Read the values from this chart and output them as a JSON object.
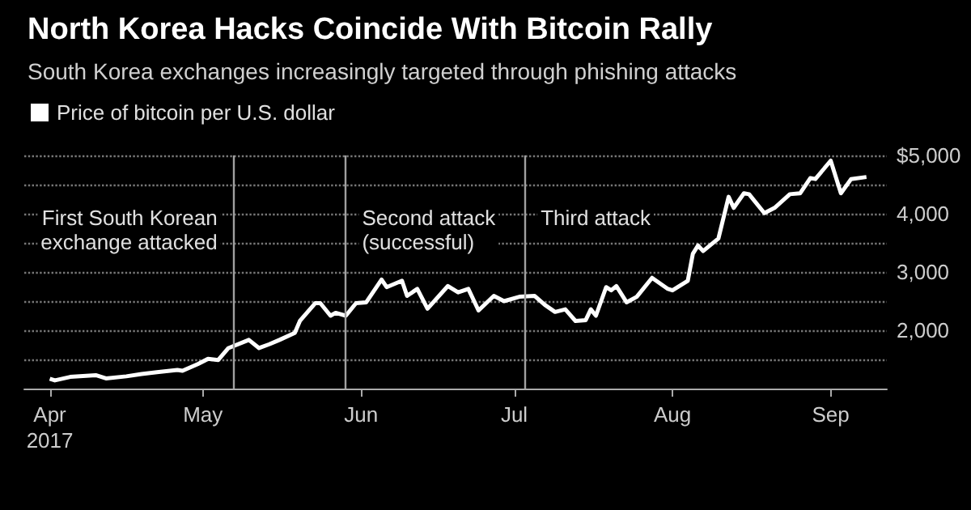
{
  "chart_data": {
    "type": "line",
    "title": "North Korea Hacks Coincide With Bitcoin Rally",
    "subtitle": "South Korea exchanges increasingly targeted through phishing attacks",
    "x": [
      "2017-04-01",
      "2017-04-02",
      "2017-04-05",
      "2017-04-10",
      "2017-04-12",
      "2017-04-16",
      "2017-04-19",
      "2017-04-22",
      "2017-04-26",
      "2017-04-27",
      "2017-04-30",
      "2017-05-02",
      "2017-05-04",
      "2017-05-06",
      "2017-05-10",
      "2017-05-12",
      "2017-05-14",
      "2017-05-16",
      "2017-05-19",
      "2017-05-20",
      "2017-05-23",
      "2017-05-24",
      "2017-05-26",
      "2017-05-27",
      "2017-05-29",
      "2017-05-31",
      "2017-06-02",
      "2017-06-05",
      "2017-06-06",
      "2017-06-09",
      "2017-06-10",
      "2017-06-12",
      "2017-06-14",
      "2017-06-18",
      "2017-06-20",
      "2017-06-22",
      "2017-06-24",
      "2017-06-27",
      "2017-06-29",
      "2017-07-02",
      "2017-07-05",
      "2017-07-07",
      "2017-07-09",
      "2017-07-11",
      "2017-07-13",
      "2017-07-15",
      "2017-07-16",
      "2017-07-17",
      "2017-07-19",
      "2017-07-20",
      "2017-07-21",
      "2017-07-23",
      "2017-07-25",
      "2017-07-28",
      "2017-07-31",
      "2017-08-01",
      "2017-08-04",
      "2017-08-05",
      "2017-08-06",
      "2017-08-07",
      "2017-08-10",
      "2017-08-12",
      "2017-08-13",
      "2017-08-15",
      "2017-08-16",
      "2017-08-19",
      "2017-08-21",
      "2017-08-24",
      "2017-08-26",
      "2017-08-28",
      "2017-08-29",
      "2017-09-01",
      "2017-09-03",
      "2017-09-05",
      "2017-09-08"
    ],
    "series": [
      {
        "name": "Price of bitcoin per U.S. dollar",
        "color": "#ffffff",
        "values": [
          1170,
          1140,
          1200,
          1230,
          1175,
          1210,
          1250,
          1280,
          1320,
          1305,
          1420,
          1510,
          1490,
          1695,
          1835,
          1695,
          1760,
          1835,
          1955,
          2160,
          2465,
          2465,
          2250,
          2300,
          2250,
          2465,
          2480,
          2870,
          2740,
          2850,
          2590,
          2710,
          2370,
          2760,
          2650,
          2710,
          2340,
          2590,
          2500,
          2575,
          2590,
          2435,
          2315,
          2360,
          2160,
          2175,
          2360,
          2250,
          2740,
          2685,
          2760,
          2480,
          2575,
          2900,
          2715,
          2685,
          2850,
          3315,
          3455,
          3360,
          3575,
          4290,
          4100,
          4350,
          4335,
          4010,
          4100,
          4335,
          4350,
          4610,
          4595,
          4910,
          4350,
          4595,
          4630
        ]
      }
    ],
    "xlim": [
      "2017-03-27",
      "2017-09-12"
    ],
    "xticks": [
      {
        "value": "2017-04-01",
        "label": "Apr\n2017"
      },
      {
        "value": "2017-05-01",
        "label": "May"
      },
      {
        "value": "2017-06-01",
        "label": "Jun"
      },
      {
        "value": "2017-07-01",
        "label": "Jul"
      },
      {
        "value": "2017-08-01",
        "label": "Aug"
      },
      {
        "value": "2017-09-01",
        "label": "Sep"
      }
    ],
    "ylim": [
      1000,
      5000
    ],
    "yticks": [
      {
        "value": 1500,
        "label": null
      },
      {
        "value": 2000,
        "label": "2,000"
      },
      {
        "value": 2500,
        "label": null
      },
      {
        "value": 3000,
        "label": "3,000"
      },
      {
        "value": 3500,
        "label": null
      },
      {
        "value": 4000,
        "label": "4,000"
      },
      {
        "value": 4500,
        "label": null
      },
      {
        "value": 5000,
        "label": "$5,000"
      }
    ],
    "ref_lines": [
      {
        "axis": "x",
        "value": "2017-05-07",
        "label": "First South Korean\nexchange attacked",
        "color": "#a0a0a0"
      },
      {
        "axis": "x",
        "value": "2017-05-29",
        "label": "Second attack\n(successful)",
        "color": "#a0a0a0"
      },
      {
        "axis": "x",
        "value": "2017-07-03",
        "label": "Third attack",
        "color": "#a0a0a0"
      }
    ],
    "grid": "y",
    "legend": "top left",
    "marker": "none",
    "line_style": "solid"
  }
}
